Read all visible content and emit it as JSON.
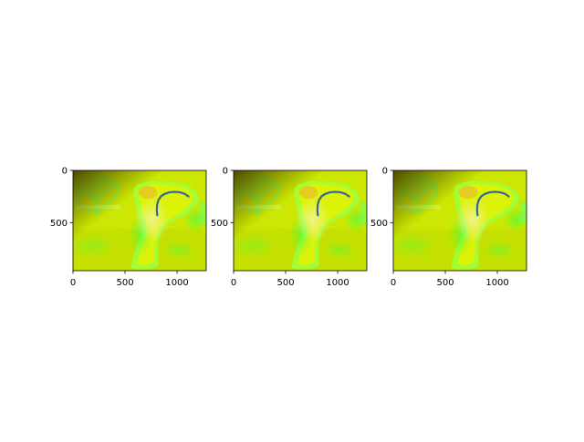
{
  "colors": {
    "background": "#ffffff",
    "axis": "#000000",
    "curve": "#2f6a9a",
    "image_yellow": "#d8f000",
    "image_green": "#3cff40",
    "image_lime": "#a8ff3c",
    "image_shadow": "#6a7a10",
    "image_highlight": "#f2f0a0",
    "image_orange": "#f0a040"
  },
  "chart_data": [
    {
      "type": "image",
      "xlim": [
        0,
        1280
      ],
      "ylim": [
        960,
        0
      ],
      "xticks": [
        0,
        500,
        1000
      ],
      "xtick_labels": [
        "0",
        "500",
        "1000"
      ],
      "yticks": [
        0,
        500
      ],
      "ytick_labels": [
        "0",
        "500"
      ],
      "overlay_curve": {
        "x": [
          810,
          805,
          808,
          820,
          845,
          880,
          925,
          975,
          1030,
          1075,
          1110
        ],
        "y": [
          430,
          380,
          330,
          285,
          248,
          225,
          210,
          205,
          210,
          225,
          250
        ]
      }
    },
    {
      "type": "image",
      "xlim": [
        0,
        1280
      ],
      "ylim": [
        960,
        0
      ],
      "xticks": [
        0,
        500,
        1000
      ],
      "xtick_labels": [
        "0",
        "500",
        "1000"
      ],
      "yticks": [
        0,
        500
      ],
      "ytick_labels": [
        "0",
        "500"
      ],
      "overlay_curve": {
        "x": [
          810,
          805,
          808,
          820,
          845,
          880,
          925,
          975,
          1030,
          1075,
          1110
        ],
        "y": [
          430,
          380,
          330,
          285,
          248,
          225,
          210,
          205,
          210,
          225,
          250
        ]
      }
    },
    {
      "type": "image",
      "xlim": [
        0,
        1280
      ],
      "ylim": [
        960,
        0
      ],
      "xticks": [
        0,
        500,
        1000
      ],
      "xtick_labels": [
        "0",
        "500",
        "1000"
      ],
      "yticks": [
        0,
        500
      ],
      "ytick_labels": [
        "0",
        "500"
      ],
      "overlay_curve": {
        "x": [
          810,
          805,
          808,
          820,
          845,
          880,
          925,
          975,
          1030,
          1075,
          1110
        ],
        "y": [
          430,
          380,
          330,
          285,
          248,
          225,
          210,
          205,
          210,
          225,
          250
        ]
      }
    }
  ]
}
